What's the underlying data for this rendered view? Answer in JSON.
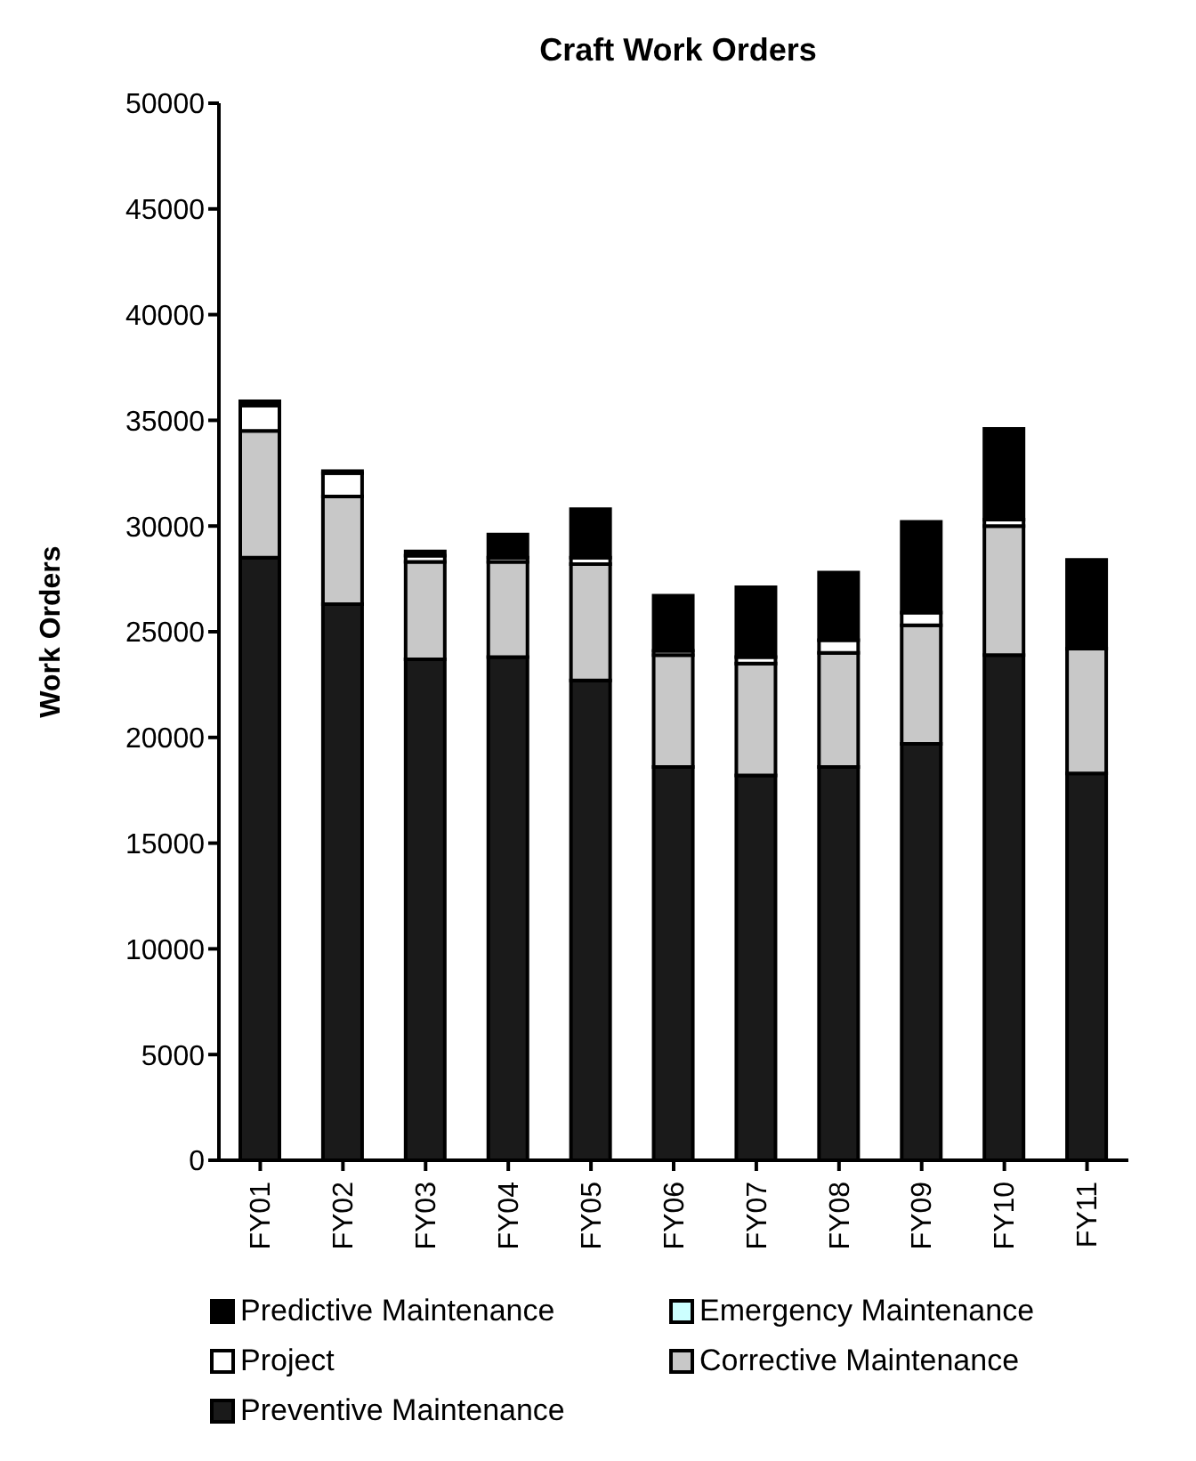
{
  "chart_data": {
    "type": "bar",
    "title": "Craft Work Orders",
    "ylabel": "Work Orders",
    "stacked": true,
    "categories": [
      "FY01",
      "FY02",
      "FY03",
      "FY04",
      "FY05",
      "FY06",
      "FY07",
      "FY08",
      "FY09",
      "FY10",
      "FY11"
    ],
    "series": [
      {
        "name": "Preventive Maintenance",
        "color": "#1a1a1a",
        "values": [
          28500,
          26300,
          23700,
          23800,
          22700,
          18600,
          18200,
          18600,
          19700,
          23900,
          18300
        ]
      },
      {
        "name": "Corrective Maintenance",
        "color": "#c8c8c8",
        "values": [
          6000,
          5100,
          4600,
          4500,
          5500,
          5300,
          5300,
          5400,
          5600,
          6100,
          5900
        ]
      },
      {
        "name": "Project",
        "color": "#ffffff",
        "values": [
          1200,
          1100,
          300,
          200,
          300,
          200,
          300,
          600,
          600,
          300,
          0
        ]
      },
      {
        "name": "Emergency Maintenance",
        "color": "#ccffff",
        "values": [
          0,
          0,
          0,
          0,
          0,
          0,
          0,
          0,
          0,
          0,
          0
        ]
      },
      {
        "name": "Predictive Maintenance",
        "color": "#000000",
        "values": [
          200,
          100,
          200,
          1100,
          2300,
          2600,
          3300,
          3200,
          4300,
          4300,
          4200
        ]
      }
    ],
    "ylim": [
      0,
      50000
    ],
    "yticks": [
      0,
      5000,
      10000,
      15000,
      20000,
      25000,
      30000,
      35000,
      40000,
      45000,
      50000
    ],
    "grid": false,
    "legend": "bottom"
  }
}
